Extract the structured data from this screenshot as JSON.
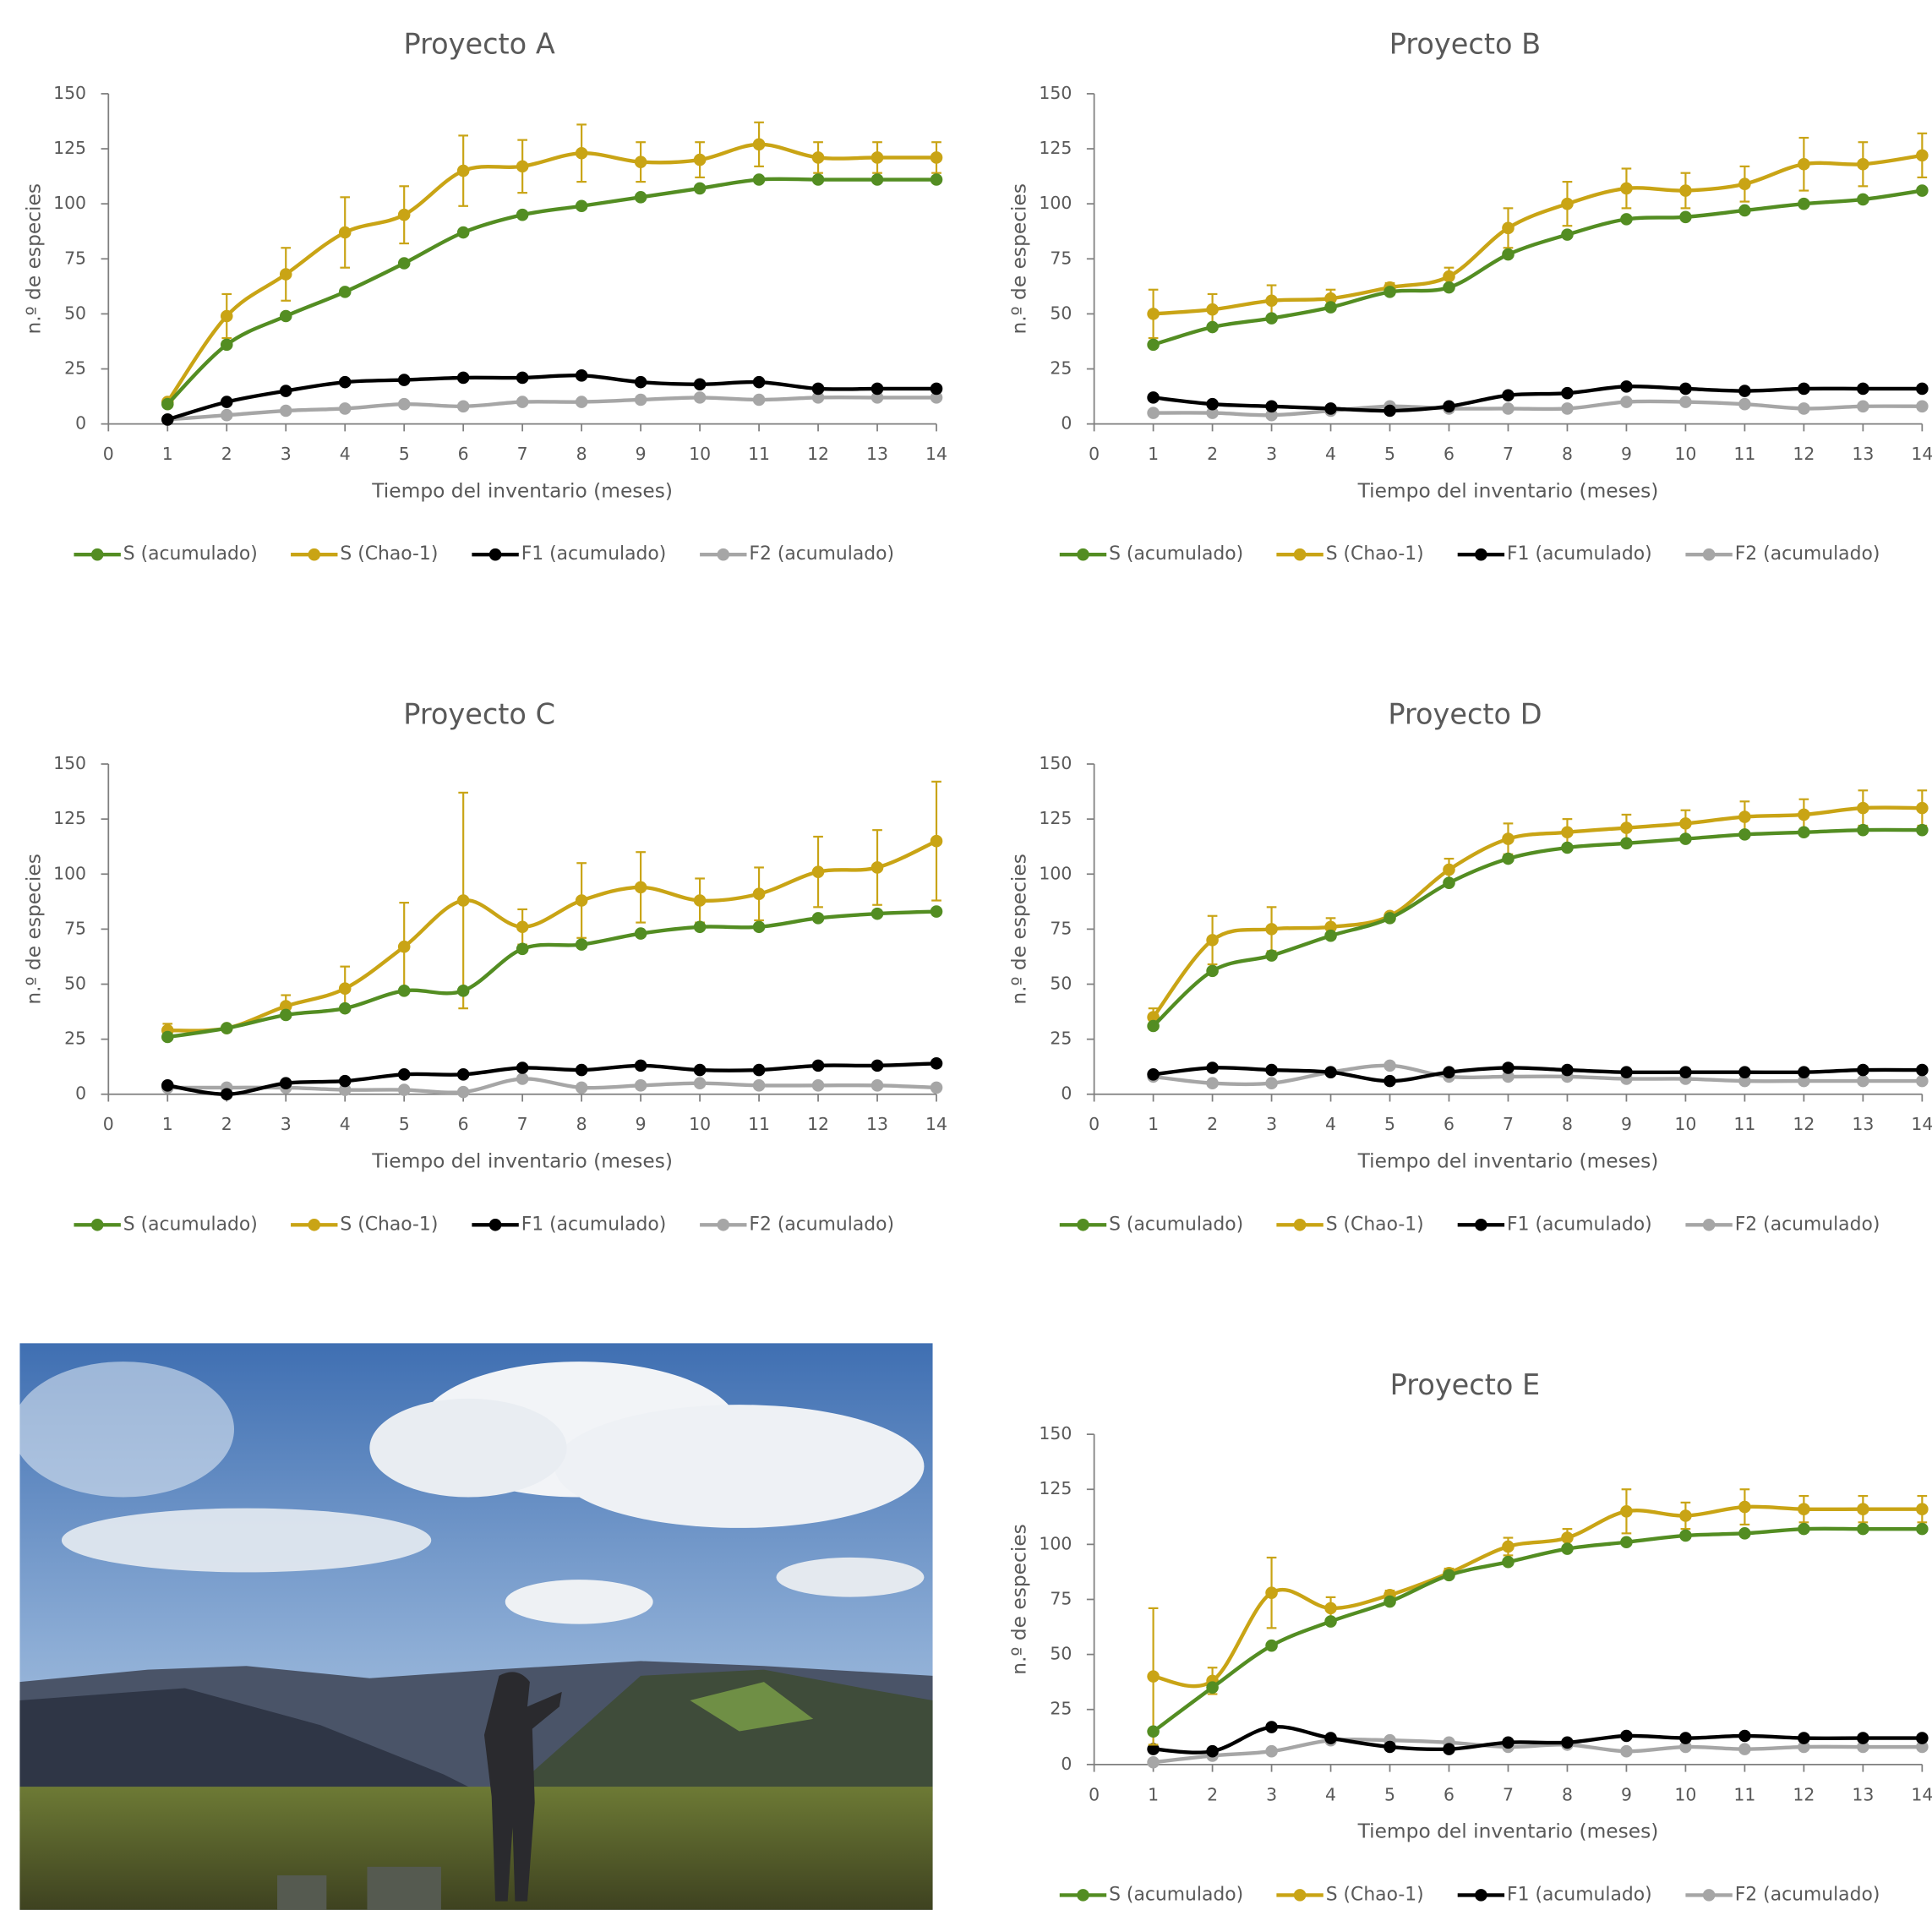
{
  "chart_data": [
    {
      "type": "line",
      "title": "Proyecto A",
      "x_label": "Tiempo del inventario (meses)",
      "y_label": "n.º de especies",
      "x": [
        1,
        2,
        3,
        4,
        5,
        6,
        7,
        8,
        9,
        10,
        11,
        12,
        13,
        14
      ],
      "xlim": [
        0,
        14
      ],
      "xticks": [
        0,
        1,
        2,
        3,
        4,
        5,
        6,
        7,
        8,
        9,
        10,
        11,
        12,
        13,
        14
      ],
      "ylim": [
        0,
        150
      ],
      "yticks": [
        0,
        25,
        50,
        75,
        100,
        125,
        150
      ],
      "smooth": true,
      "legend": "bottom",
      "series": [
        {
          "name": "S (acumulado)",
          "color": "#538d22",
          "values": [
            9,
            36,
            49,
            60,
            73,
            87,
            95,
            99,
            103,
            107,
            111,
            111,
            111,
            111
          ]
        },
        {
          "name": "S (Chao-1)",
          "color": "#c9a415",
          "values": [
            10,
            49,
            68,
            87,
            95,
            115,
            117,
            123,
            119,
            120,
            127,
            121,
            121,
            121
          ],
          "errors": [
            1,
            10,
            12,
            16,
            13,
            16,
            12,
            13,
            9,
            8,
            10,
            7,
            7,
            7
          ]
        },
        {
          "name": "F1 (acumulado)",
          "color": "#000000",
          "values": [
            2,
            10,
            15,
            19,
            20,
            21,
            21,
            22,
            19,
            18,
            19,
            16,
            16,
            16
          ]
        },
        {
          "name": "F2 (acumulado)",
          "color": "#a6a6a6",
          "values": [
            2,
            4,
            6,
            7,
            9,
            8,
            10,
            10,
            11,
            12,
            11,
            12,
            12,
            12
          ]
        }
      ]
    },
    {
      "type": "line",
      "title": "Proyecto B",
      "x_label": "Tiempo del inventario (meses)",
      "y_label": "n.º de especies",
      "x": [
        1,
        2,
        3,
        4,
        5,
        6,
        7,
        8,
        9,
        10,
        11,
        12,
        13,
        14
      ],
      "xlim": [
        0,
        14
      ],
      "xticks": [
        0,
        1,
        2,
        3,
        4,
        5,
        6,
        7,
        8,
        9,
        10,
        11,
        12,
        13,
        14
      ],
      "ylim": [
        0,
        150
      ],
      "yticks": [
        0,
        25,
        50,
        75,
        100,
        125,
        150
      ],
      "smooth": true,
      "legend": "bottom",
      "series": [
        {
          "name": "S (acumulado)",
          "color": "#538d22",
          "values": [
            36,
            44,
            48,
            53,
            60,
            62,
            77,
            86,
            93,
            94,
            97,
            100,
            102,
            106
          ]
        },
        {
          "name": "S (Chao-1)",
          "color": "#c9a415",
          "values": [
            50,
            52,
            56,
            57,
            62,
            67,
            89,
            100,
            107,
            106,
            109,
            118,
            118,
            122
          ],
          "errors": [
            11,
            7,
            7,
            4,
            2,
            4,
            9,
            10,
            9,
            8,
            8,
            12,
            10,
            10
          ]
        },
        {
          "name": "F1 (acumulado)",
          "color": "#000000",
          "values": [
            12,
            9,
            8,
            7,
            6,
            8,
            13,
            14,
            17,
            16,
            15,
            16,
            16,
            16
          ]
        },
        {
          "name": "F2 (acumulado)",
          "color": "#a6a6a6",
          "values": [
            5,
            5,
            4,
            6,
            8,
            7,
            7,
            7,
            10,
            10,
            9,
            7,
            8,
            8
          ]
        }
      ]
    },
    {
      "type": "line",
      "title": "Proyecto C",
      "x_label": "Tiempo del inventario (meses)",
      "y_label": "n.º de especies",
      "x": [
        1,
        2,
        3,
        4,
        5,
        6,
        7,
        8,
        9,
        10,
        11,
        12,
        13,
        14
      ],
      "xlim": [
        0,
        14
      ],
      "xticks": [
        0,
        1,
        2,
        3,
        4,
        5,
        6,
        7,
        8,
        9,
        10,
        11,
        12,
        13,
        14
      ],
      "ylim": [
        0,
        150
      ],
      "yticks": [
        0,
        25,
        50,
        75,
        100,
        125,
        150
      ],
      "smooth": true,
      "legend": "bottom",
      "series": [
        {
          "name": "S (acumulado)",
          "color": "#538d22",
          "values": [
            26,
            30,
            36,
            39,
            47,
            47,
            66,
            68,
            73,
            76,
            76,
            80,
            82,
            83
          ]
        },
        {
          "name": "S (Chao-1)",
          "color": "#c9a415",
          "values": [
            29,
            30,
            40,
            48,
            67,
            88,
            76,
            88,
            94,
            88,
            91,
            101,
            103,
            115
          ],
          "errors": [
            3,
            0,
            5,
            10,
            20,
            49,
            8,
            17,
            16,
            10,
            12,
            16,
            17,
            27
          ]
        },
        {
          "name": "F1 (acumulado)",
          "color": "#000000",
          "values": [
            4,
            0,
            5,
            6,
            9,
            9,
            12,
            11,
            13,
            11,
            11,
            13,
            13,
            14
          ]
        },
        {
          "name": "F2 (acumulado)",
          "color": "#a6a6a6",
          "values": [
            3,
            3,
            3,
            2,
            2,
            1,
            7,
            3,
            4,
            5,
            4,
            4,
            4,
            3
          ]
        }
      ]
    },
    {
      "type": "line",
      "title": "Proyecto D",
      "x_label": "Tiempo del inventario (meses)",
      "y_label": "n.º de especies",
      "x": [
        1,
        2,
        3,
        4,
        5,
        6,
        7,
        8,
        9,
        10,
        11,
        12,
        13,
        14
      ],
      "xlim": [
        0,
        14
      ],
      "xticks": [
        0,
        1,
        2,
        3,
        4,
        5,
        6,
        7,
        8,
        9,
        10,
        11,
        12,
        13,
        14
      ],
      "ylim": [
        0,
        150
      ],
      "yticks": [
        0,
        25,
        50,
        75,
        100,
        125,
        150
      ],
      "smooth": true,
      "legend": "bottom",
      "series": [
        {
          "name": "S (acumulado)",
          "color": "#538d22",
          "values": [
            31,
            56,
            63,
            72,
            80,
            96,
            107,
            112,
            114,
            116,
            118,
            119,
            120,
            120
          ]
        },
        {
          "name": "S (Chao-1)",
          "color": "#c9a415",
          "values": [
            35,
            70,
            75,
            76,
            81,
            102,
            116,
            119,
            121,
            123,
            126,
            127,
            130,
            130
          ],
          "errors": [
            4,
            11,
            10,
            4,
            1,
            5,
            7,
            6,
            6,
            6,
            7,
            7,
            8,
            8
          ]
        },
        {
          "name": "F1 (acumulado)",
          "color": "#000000",
          "values": [
            9,
            12,
            11,
            10,
            6,
            10,
            12,
            11,
            10,
            10,
            10,
            10,
            11,
            11
          ]
        },
        {
          "name": "F2 (acumulado)",
          "color": "#a6a6a6",
          "values": [
            8,
            5,
            5,
            10,
            13,
            8,
            8,
            8,
            7,
            7,
            6,
            6,
            6,
            6
          ]
        }
      ]
    },
    {
      "type": "line",
      "title": "Proyecto E",
      "x_label": "Tiempo del inventario (meses)",
      "y_label": "n.º de especies",
      "x": [
        1,
        2,
        3,
        4,
        5,
        6,
        7,
        8,
        9,
        10,
        11,
        12,
        13,
        14
      ],
      "xlim": [
        0,
        14
      ],
      "xticks": [
        0,
        1,
        2,
        3,
        4,
        5,
        6,
        7,
        8,
        9,
        10,
        11,
        12,
        13,
        14
      ],
      "ylim": [
        0,
        150
      ],
      "yticks": [
        0,
        25,
        50,
        75,
        100,
        125,
        150
      ],
      "smooth": true,
      "legend": "bottom",
      "series": [
        {
          "name": "S (acumulado)",
          "color": "#538d22",
          "values": [
            15,
            35,
            54,
            65,
            74,
            86,
            92,
            98,
            101,
            104,
            105,
            107,
            107,
            107
          ]
        },
        {
          "name": "S (Chao-1)",
          "color": "#c9a415",
          "values": [
            40,
            38,
            78,
            71,
            77,
            87,
            99,
            103,
            115,
            113,
            117,
            116,
            116,
            116
          ],
          "errors": [
            31,
            6,
            16,
            5,
            2,
            2,
            4,
            4,
            10,
            6,
            8,
            6,
            6,
            6
          ]
        },
        {
          "name": "F1 (acumulado)",
          "color": "#000000",
          "values": [
            7,
            6,
            17,
            12,
            8,
            7,
            10,
            10,
            13,
            12,
            13,
            12,
            12,
            12
          ]
        },
        {
          "name": "F2 (acumulado)",
          "color": "#a6a6a6",
          "values": [
            1,
            4,
            6,
            11,
            11,
            10,
            8,
            9,
            6,
            8,
            7,
            8,
            8,
            8
          ]
        }
      ]
    }
  ]
}
